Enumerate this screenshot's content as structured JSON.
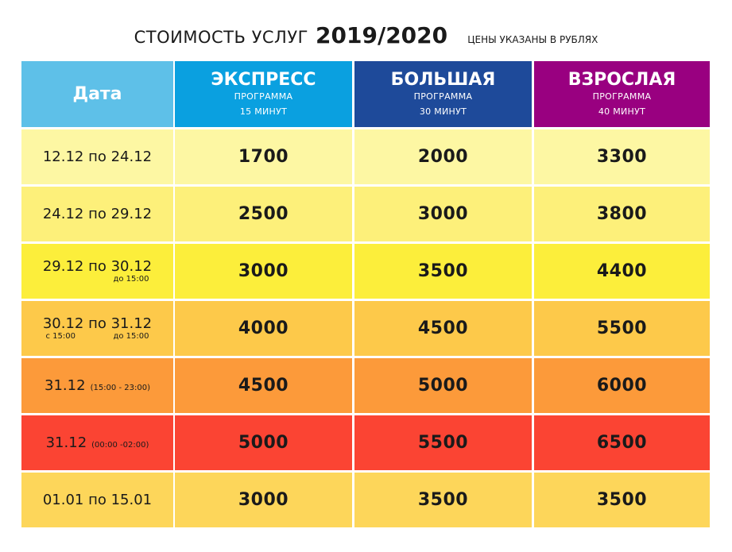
{
  "title": {
    "main": "СТОИМОСТЬ УСЛУГ",
    "year": "2019/2020",
    "note": "ЦЕНЫ УКАЗАНЫ В РУБЛЯХ"
  },
  "columns": {
    "date": "Дата",
    "express": {
      "name": "ЭКСПРЕСС",
      "program": "ПРОГРАММА",
      "duration": "15 МИНУТ"
    },
    "big": {
      "name": "БОЛЬШАЯ",
      "program": "ПРОГРАММА",
      "duration": "30 МИНУТ"
    },
    "adult": {
      "name": "ВЗРОСЛАЯ",
      "program": "ПРОГРАММА",
      "duration": "40 МИНУТ"
    }
  },
  "colors": {
    "date_header": "#5ec0e8",
    "express_header": "#0aa0e0",
    "big_header": "#1e4a9a",
    "adult_header": "#990080"
  },
  "rows": [
    {
      "date": "12.12 по 24.12",
      "note": "",
      "note_left": "",
      "note_right": "",
      "express": "1700",
      "big": "2000",
      "adult": "3300",
      "color": "#fdf7a3"
    },
    {
      "date": "24.12 по 29.12",
      "note": "",
      "note_left": "",
      "note_right": "",
      "express": "2500",
      "big": "3000",
      "adult": "3800",
      "color": "#fdf07a"
    },
    {
      "date": "29.12 по 30.12",
      "note": "до 15:00",
      "note_left": "",
      "note_right": "",
      "express": "3000",
      "big": "3500",
      "adult": "4400",
      "color": "#fcee3b"
    },
    {
      "date": "30.12 по 31.12",
      "note": "",
      "note_left": "с 15:00",
      "note_right": "до 15:00",
      "express": "4000",
      "big": "4500",
      "adult": "5500",
      "color": "#fdc94a"
    },
    {
      "date": "31.12",
      "note": "(15:00 - 23:00)",
      "note_left": "",
      "note_right": "",
      "express": "4500",
      "big": "5000",
      "adult": "6000",
      "color": "#fc9a3a"
    },
    {
      "date": "31.12",
      "note": "(00:00 -02:00)",
      "note_left": "",
      "note_right": "",
      "express": "5000",
      "big": "5500",
      "adult": "6500",
      "color": "#fb4433"
    },
    {
      "date": "01.01 по 15.01",
      "note": "",
      "note_left": "",
      "note_right": "",
      "express": "3000",
      "big": "3500",
      "adult": "3500",
      "color": "#fdd65a"
    }
  ]
}
